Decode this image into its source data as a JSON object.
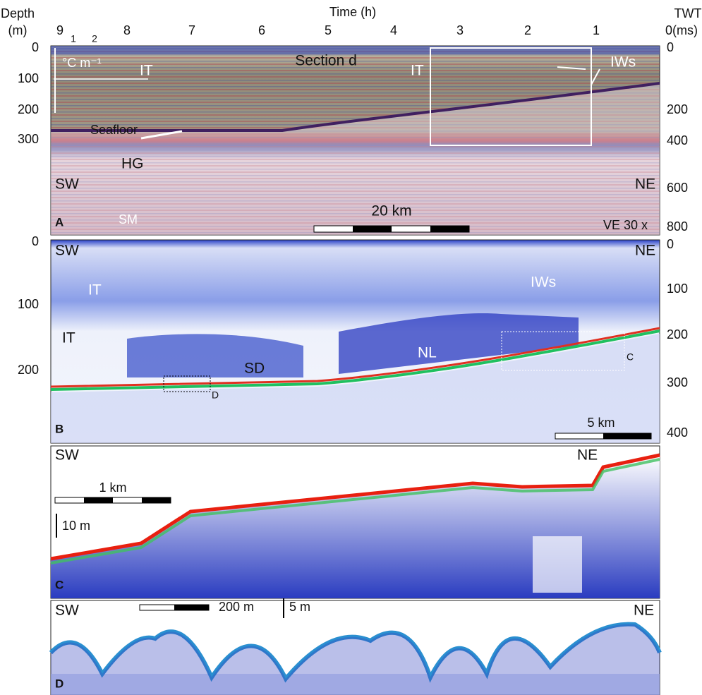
{
  "header": {
    "depth_label": "Depth",
    "depth_unit": "(m)",
    "time_label": "Time (h)",
    "twt_label": "TWT",
    "twt_unit": "0(ms)",
    "time_ticks": [
      "9",
      "8",
      "7",
      "6",
      "5",
      "4",
      "3",
      "2",
      "1"
    ]
  },
  "panels": [
    {
      "letter": "A",
      "depth_ticks": [
        "0",
        "100",
        "200",
        "300"
      ],
      "twt_ticks": [
        "0",
        "200",
        "400",
        "600",
        "800"
      ],
      "temp_ticks": [
        "1",
        "2"
      ],
      "temp_unit": "°C m⁻¹",
      "labels": {
        "section": "Section d",
        "it_left": "IT",
        "it_right": "IT",
        "iws": "IWs",
        "seafloor": "Seafloor",
        "hg": "HG",
        "sw": "SW",
        "ne": "NE",
        "sm": "SM",
        "scale": "20 km",
        "ve": "VE 30 x"
      }
    },
    {
      "letter": "B",
      "depth_ticks": [
        "0",
        "100",
        "200"
      ],
      "twt_ticks": [
        "0",
        "100",
        "200",
        "300",
        "400"
      ],
      "labels": {
        "sw": "SW",
        "ne": "NE",
        "it_upper": "IT",
        "it_lower": "IT",
        "iws": "IWs",
        "nl": "NL",
        "sd": "SD",
        "box_d": "D",
        "box_c": "C",
        "scale": "5 km"
      }
    },
    {
      "letter": "C",
      "labels": {
        "sw": "SW",
        "ne": "NE",
        "scale": "1 km",
        "vscale": "10 m"
      }
    },
    {
      "letter": "D",
      "labels": {
        "sw": "SW",
        "ne": "NE",
        "scale": "200 m",
        "vscale": "5 m"
      }
    }
  ]
}
